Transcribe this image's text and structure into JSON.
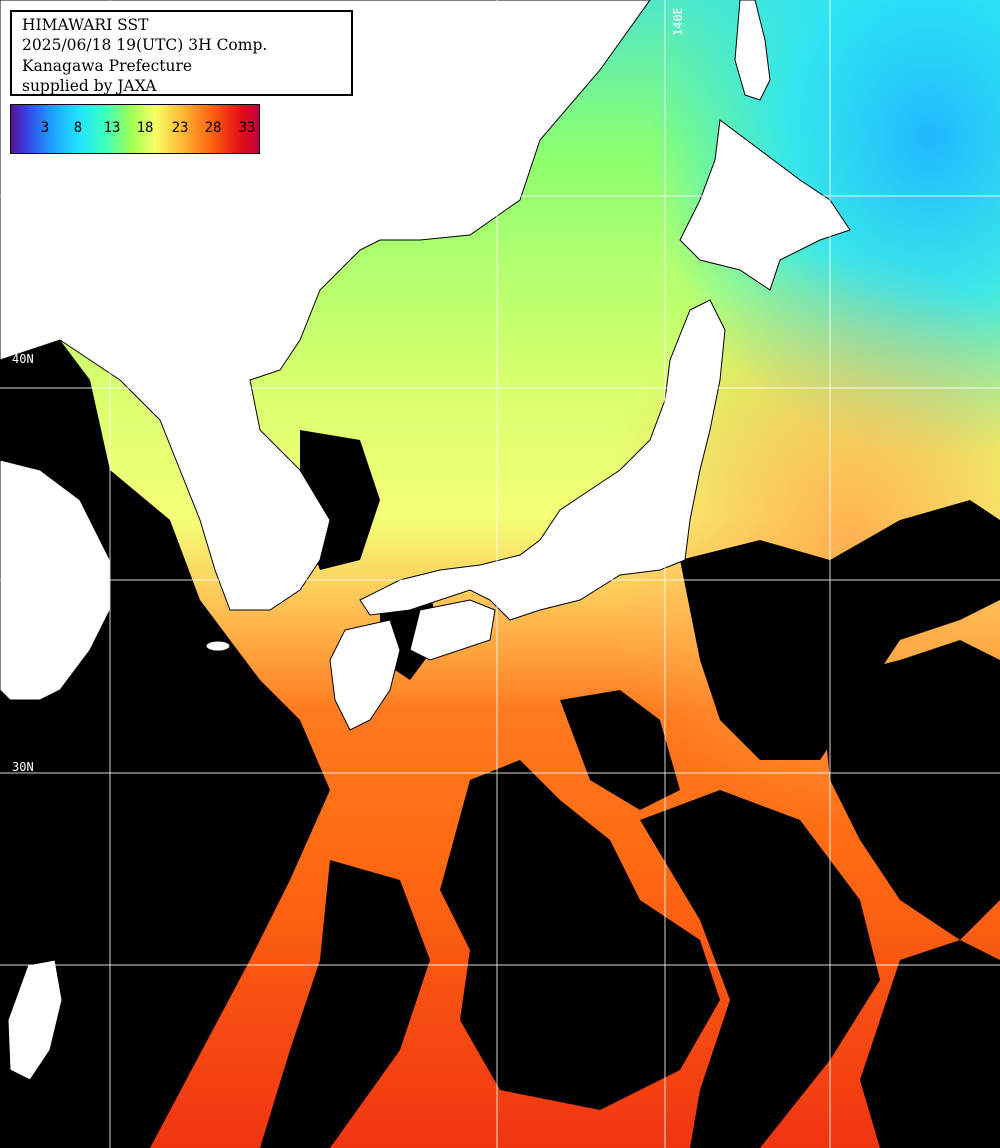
{
  "title": {
    "line1": "HIMAWARI SST",
    "line2": "2025/06/18 19(UTC) 3H Comp.",
    "line3": "Kanagawa Prefecture",
    "line4": "supplied by JAXA"
  },
  "legend": {
    "ticks": [
      "3",
      "8",
      "13",
      "18",
      "23",
      "28",
      "33"
    ],
    "colors": {
      "min": "#5b0e96",
      "mid": "#9cff55",
      "max": "#c00040"
    }
  },
  "gridlines": {
    "lon_label": "140E",
    "lat_label_1": "40N",
    "lat_label_2": "30N"
  },
  "colors": {
    "land": "#ffffff",
    "cloud": "#000000",
    "grid": "#ffffff",
    "cold_sea": "#22d8ff",
    "cool_sea": "#8cff70",
    "mild_sea": "#f4ff78",
    "warm_sea": "#ffc055",
    "hot_sea": "#ff6a12",
    "hottest_sea": "#f03412"
  }
}
